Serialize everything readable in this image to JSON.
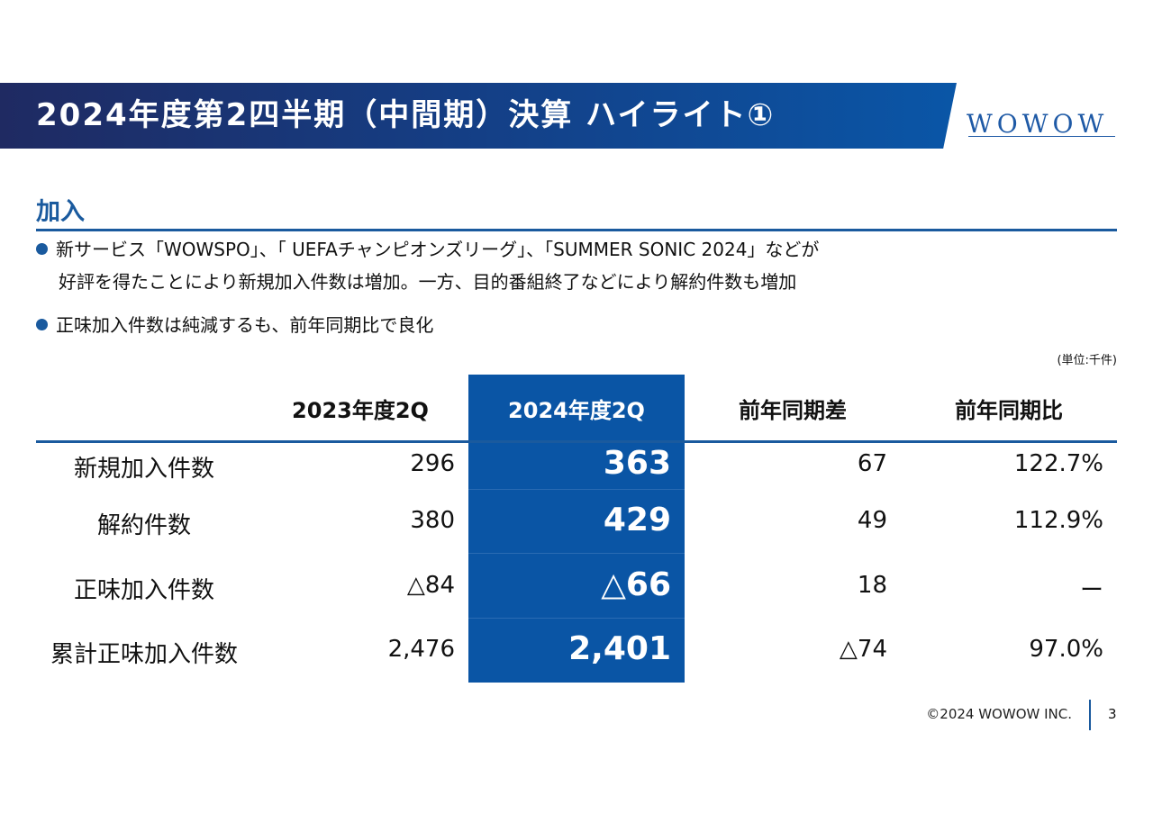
{
  "header": {
    "title": "2024年度第2四半期（中間期）決算 ハイライト①",
    "logo": "WOWOW"
  },
  "section": {
    "title": "加入"
  },
  "bullets": [
    {
      "line1": "新サービス「WOWSPO」、「 UEFAチャンピオンズリーグ」、「SUMMER SONIC 2024」などが",
      "line2": "好評を得たことにより新規加入件数は増加。一方、目的番組終了などにより解約件数も増加"
    },
    {
      "line1": "正味加入件数は純減するも、前年同期比で良化"
    }
  ],
  "table": {
    "unit": "(単位:千件)",
    "columns": [
      "2023年度2Q",
      "2024年度2Q",
      "前年同期差",
      "前年同期比"
    ],
    "rows": [
      {
        "label": "新規加入件数",
        "values": [
          "296",
          "363",
          "67",
          "122.7%"
        ]
      },
      {
        "label": "解約件数",
        "values": [
          "380",
          "429",
          "49",
          "112.9%"
        ]
      },
      {
        "label": "正味加入件数",
        "values": [
          "△84",
          "△66",
          "18",
          "ー"
        ]
      },
      {
        "label": "累計正味加入件数",
        "values": [
          "2,476",
          "2,401",
          "△74",
          "97.0%"
        ]
      }
    ],
    "highlight_color": "#0a55a5"
  },
  "footer": {
    "copyright": "©2024 WOWOW INC.",
    "page": "3"
  }
}
